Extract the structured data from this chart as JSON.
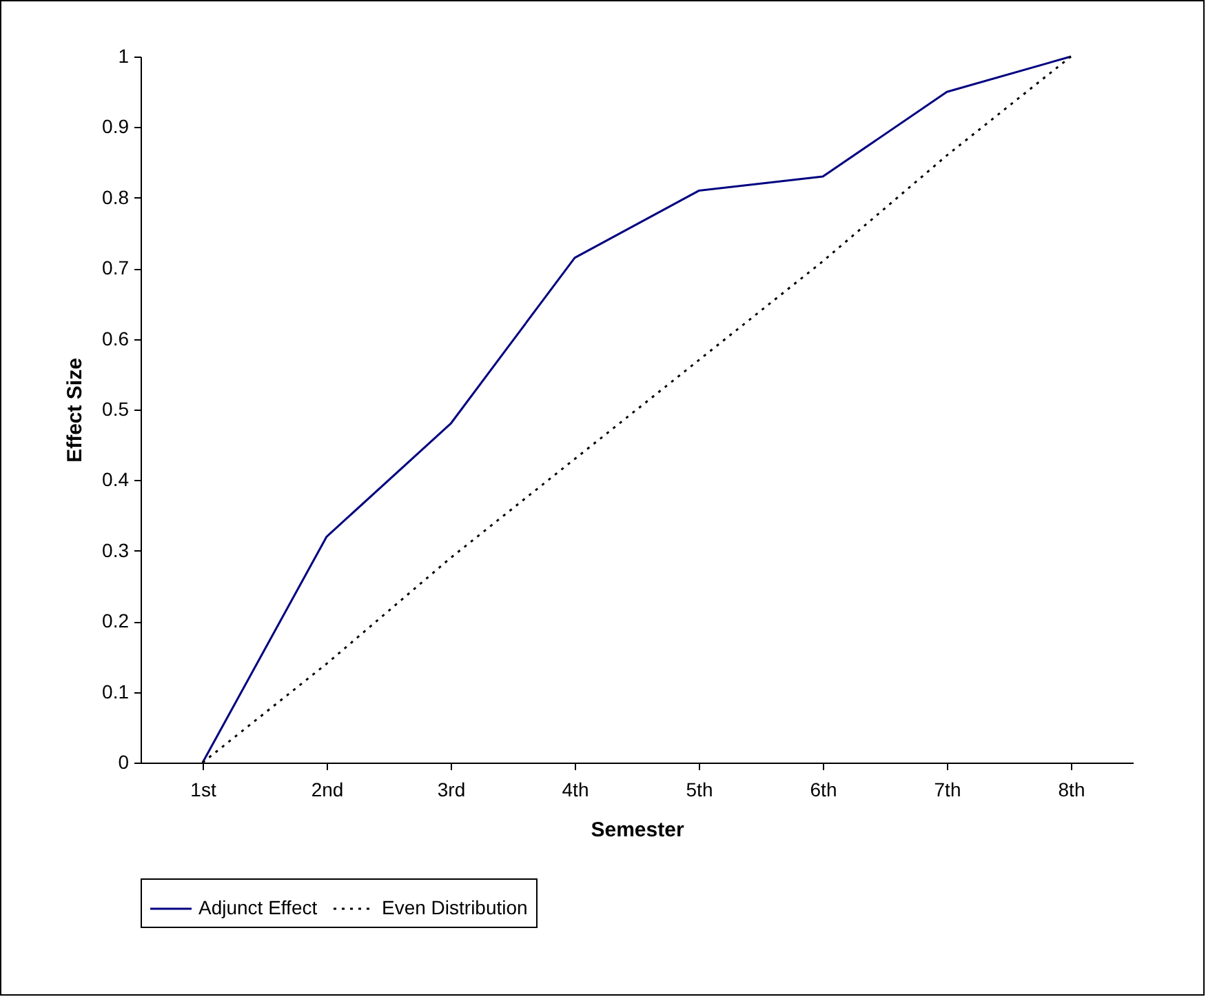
{
  "chart_data": {
    "type": "line",
    "xlabel": "Semester",
    "ylabel": "Effect Size",
    "categories": [
      "1st",
      "2nd",
      "3rd",
      "4th",
      "5th",
      "6th",
      "7th",
      "8th"
    ],
    "series": [
      {
        "name": "Adjunct Effect",
        "color": "#000080",
        "line_style": "solid",
        "values": [
          0,
          0.32,
          0.48,
          0.715,
          0.81,
          0.83,
          0.95,
          1
        ]
      },
      {
        "name": "Even Distribution",
        "color": "#000000",
        "line_style": "dotted",
        "values": [
          0,
          0.14,
          0.29,
          0.43,
          0.57,
          0.71,
          0.86,
          1
        ]
      }
    ],
    "ylim": [
      0,
      1
    ],
    "yticks": [
      0,
      0.1,
      0.2,
      0.3,
      0.4,
      0.5,
      0.6,
      0.7,
      0.8,
      0.9,
      1
    ],
    "grid": false,
    "legend": "bottom",
    "marker": "none"
  }
}
